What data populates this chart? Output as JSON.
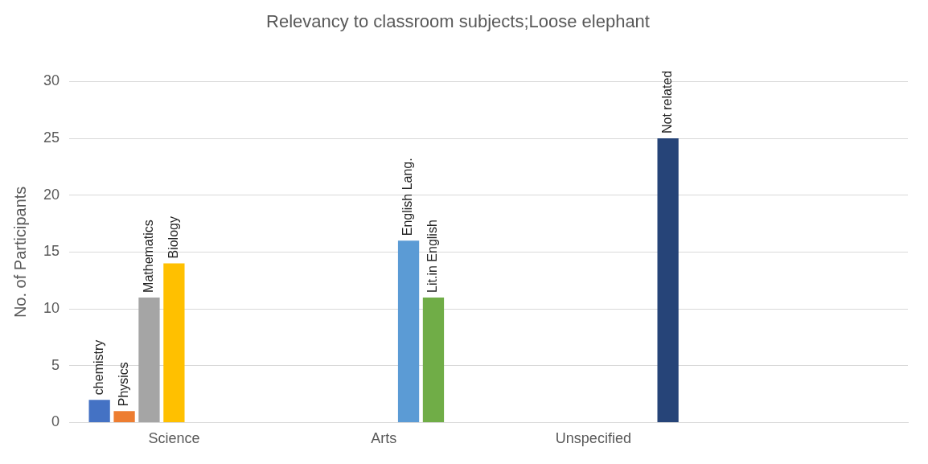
{
  "chart_data": {
    "type": "bar",
    "title": "Relevancy to classroom subjects;Loose elephant",
    "ylabel": "No. of Participants",
    "categories": [
      "Science",
      "Arts",
      "Unspecified",
      null
    ],
    "series": [
      {
        "name": "chemistry",
        "color": "#4472c4",
        "values": [
          2,
          null,
          null,
          null
        ]
      },
      {
        "name": "Physics",
        "color": "#ed7d31",
        "values": [
          1,
          null,
          null,
          null
        ]
      },
      {
        "name": "Mathematics",
        "color": "#a5a5a5",
        "values": [
          11,
          null,
          null,
          null
        ]
      },
      {
        "name": "Biology",
        "color": "#ffc000",
        "values": [
          14,
          null,
          null,
          null
        ]
      },
      {
        "name": "English Lang.",
        "color": "#5b9bd5",
        "values": [
          null,
          16,
          null,
          null
        ]
      },
      {
        "name": "Lit.in English",
        "color": "#70ad47",
        "values": [
          null,
          11,
          null,
          null
        ]
      },
      {
        "name": "Not related",
        "color": "#264478",
        "values": [
          null,
          null,
          25,
          null
        ]
      }
    ],
    "ylim": [
      0,
      30
    ],
    "yticks": [
      0,
      5,
      10,
      15,
      20,
      25,
      30
    ],
    "grid": "y",
    "legend": false
  }
}
